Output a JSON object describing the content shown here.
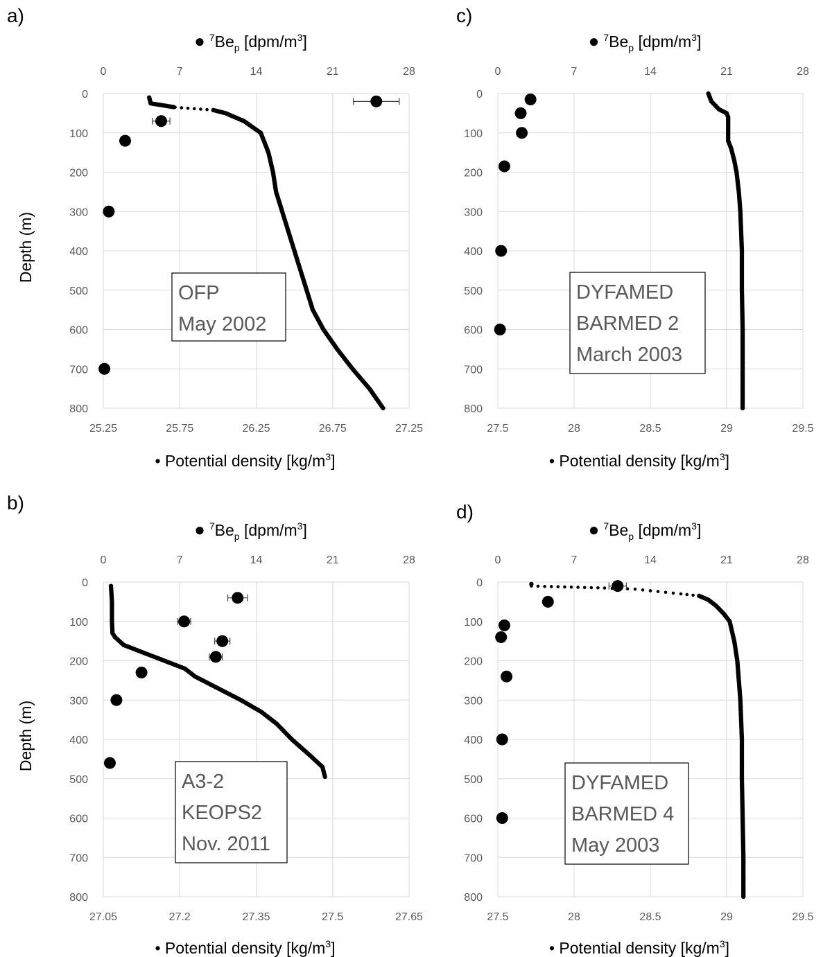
{
  "chart_data": [
    {
      "type": "scatter",
      "panel_label": "a)",
      "top_axis_title": {
        "marker": "●",
        "sup": "7",
        "base": "Be",
        "sub": "p",
        "units": " [dpm/m",
        "units_sup": "3",
        "units_end": "]"
      },
      "bottom_axis_title": {
        "marker": "•",
        "text": " Potential density [kg/m",
        "sup": "3",
        "end": "]"
      },
      "ylabel": "Depth (m)",
      "top_ticks": [
        "0",
        "7",
        "14",
        "21",
        "28"
      ],
      "bottom_ticks": [
        "25.25",
        "25.75",
        "26.25",
        "26.75",
        "27.25"
      ],
      "y_ticks": [
        "0",
        "100",
        "200",
        "300",
        "400",
        "500",
        "600",
        "700",
        "800"
      ],
      "top_range": [
        0,
        28
      ],
      "bottom_range": [
        25.25,
        27.25
      ],
      "y_range": [
        0,
        800
      ],
      "annotation": [
        "OFP",
        "May 2002"
      ],
      "be7_points": [
        {
          "depth": 20,
          "value": 25.0,
          "err": 2.1
        },
        {
          "depth": 70,
          "value": 5.3,
          "err": 0.8
        },
        {
          "depth": 120,
          "value": 2.0
        },
        {
          "depth": 300,
          "value": 0.5
        },
        {
          "depth": 700,
          "value": 0.1
        }
      ],
      "density_profile": [
        [
          10,
          25.55
        ],
        [
          25,
          25.56
        ],
        [
          35,
          25.72
        ],
        [
          42,
          25.97
        ],
        [
          50,
          26.05
        ],
        [
          70,
          26.17
        ],
        [
          100,
          26.28
        ],
        [
          150,
          26.33
        ],
        [
          200,
          26.36
        ],
        [
          250,
          26.38
        ],
        [
          300,
          26.42
        ],
        [
          350,
          26.46
        ],
        [
          400,
          26.5
        ],
        [
          450,
          26.54
        ],
        [
          500,
          26.58
        ],
        [
          550,
          26.62
        ],
        [
          600,
          26.69
        ],
        [
          650,
          26.78
        ],
        [
          700,
          26.88
        ],
        [
          750,
          26.99
        ],
        [
          800,
          27.08
        ]
      ]
    },
    {
      "type": "scatter",
      "panel_label": "b)",
      "top_axis_title": {
        "marker": "●",
        "sup": "7",
        "base": "Be",
        "sub": "p",
        "units": " [dpm/m",
        "units_sup": "3",
        "units_end": "]"
      },
      "bottom_axis_title": {
        "marker": "•",
        "text": " Potential density [kg/m",
        "sup": "3",
        "end": "]"
      },
      "ylabel": "Depth (m)",
      "top_ticks": [
        "0",
        "7",
        "14",
        "21",
        "28"
      ],
      "bottom_ticks": [
        "27.05",
        "27.2",
        "27.35",
        "27.5",
        "27.65"
      ],
      "y_ticks": [
        "0",
        "100",
        "200",
        "300",
        "400",
        "500",
        "600",
        "700",
        "800"
      ],
      "top_range": [
        0,
        28
      ],
      "bottom_range": [
        27.05,
        27.65
      ],
      "y_range": [
        0,
        800
      ],
      "annotation": [
        "A3-2",
        "KEOPS2",
        "Nov. 2011"
      ],
      "be7_points": [
        {
          "depth": 40,
          "value": 12.3,
          "err": 0.9
        },
        {
          "depth": 100,
          "value": 7.4,
          "err": 0.6
        },
        {
          "depth": 150,
          "value": 10.9,
          "err": 0.7
        },
        {
          "depth": 190,
          "value": 10.3,
          "err": 0.6
        },
        {
          "depth": 230,
          "value": 3.5
        },
        {
          "depth": 300,
          "value": 1.2
        },
        {
          "depth": 460,
          "value": 0.6
        }
      ],
      "density_profile": [
        [
          10,
          27.065
        ],
        [
          50,
          27.067
        ],
        [
          100,
          27.067
        ],
        [
          130,
          27.068
        ],
        [
          140,
          27.073
        ],
        [
          160,
          27.09
        ],
        [
          180,
          27.13
        ],
        [
          200,
          27.17
        ],
        [
          220,
          27.21
        ],
        [
          240,
          27.23
        ],
        [
          260,
          27.26
        ],
        [
          280,
          27.29
        ],
        [
          300,
          27.32
        ],
        [
          330,
          27.36
        ],
        [
          360,
          27.39
        ],
        [
          400,
          27.42
        ],
        [
          440,
          27.455
        ],
        [
          470,
          27.48
        ],
        [
          495,
          27.485
        ]
      ]
    },
    {
      "type": "scatter",
      "panel_label": "c)",
      "top_axis_title": {
        "marker": "●",
        "sup": "7",
        "base": "Be",
        "sub": "p",
        "units": " [dpm/m",
        "units_sup": "3",
        "units_end": "]"
      },
      "bottom_axis_title": {
        "marker": "•",
        "text": " Potential density [kg/m",
        "sup": "3",
        "end": "]"
      },
      "ylabel": "",
      "top_ticks": [
        "0",
        "7",
        "14",
        "21",
        "28"
      ],
      "bottom_ticks": [
        "27.5",
        "28",
        "28.5",
        "29",
        "29.5"
      ],
      "y_ticks": [
        "0",
        "100",
        "200",
        "300",
        "400",
        "500",
        "600",
        "700",
        "800"
      ],
      "top_range": [
        0,
        28
      ],
      "bottom_range": [
        27.5,
        29.5
      ],
      "y_range": [
        0,
        800
      ],
      "annotation": [
        "DYFAMED",
        "BARMED 2",
        "March 2003"
      ],
      "be7_points": [
        {
          "depth": 15,
          "value": 3.0
        },
        {
          "depth": 50,
          "value": 2.1
        },
        {
          "depth": 100,
          "value": 2.2
        },
        {
          "depth": 185,
          "value": 0.6
        },
        {
          "depth": 400,
          "value": 0.3
        },
        {
          "depth": 600,
          "value": 0.2
        }
      ],
      "density_profile": [
        [
          0,
          28.88
        ],
        [
          20,
          28.9
        ],
        [
          40,
          28.95
        ],
        [
          50,
          29.0
        ],
        [
          60,
          29.01
        ],
        [
          100,
          29.01
        ],
        [
          120,
          29.01
        ],
        [
          140,
          29.03
        ],
        [
          170,
          29.05
        ],
        [
          200,
          29.065
        ],
        [
          250,
          29.08
        ],
        [
          300,
          29.09
        ],
        [
          400,
          29.1
        ],
        [
          500,
          29.1
        ],
        [
          600,
          29.105
        ],
        [
          700,
          29.105
        ],
        [
          800,
          29.105
        ]
      ]
    },
    {
      "type": "scatter",
      "panel_label": "d)",
      "top_axis_title": {
        "marker": "●",
        "sup": "7",
        "base": "Be",
        "sub": "p",
        "units": " [dpm/m",
        "units_sup": "3",
        "units_end": "]"
      },
      "bottom_axis_title": {
        "marker": "•",
        "text": " Potential density [kg/m",
        "sup": "3",
        "end": "]"
      },
      "ylabel": "Depth (m)",
      "top_ticks": [
        "0",
        "7",
        "14",
        "21",
        "28"
      ],
      "bottom_ticks": [
        "27.5",
        "28",
        "28.5",
        "29",
        "29.5"
      ],
      "y_ticks": [
        "0",
        "100",
        "200",
        "300",
        "400",
        "500",
        "600",
        "700",
        "800"
      ],
      "top_range": [
        0,
        28
      ],
      "bottom_range": [
        27.5,
        29.5
      ],
      "y_range": [
        0,
        800
      ],
      "annotation": [
        "DYFAMED",
        "BARMED 4",
        "May 2003"
      ],
      "be7_points": [
        {
          "depth": 10,
          "value": 11.0,
          "err": 0.8
        },
        {
          "depth": 50,
          "value": 4.6
        },
        {
          "depth": 110,
          "value": 0.6
        },
        {
          "depth": 140,
          "value": 0.3
        },
        {
          "depth": 240,
          "value": 0.8
        },
        {
          "depth": 400,
          "value": 0.4
        },
        {
          "depth": 600,
          "value": 0.4
        }
      ],
      "density_profile": [
        [
          5,
          27.72
        ],
        [
          10,
          27.72
        ],
        [
          15,
          28.2
        ],
        [
          18,
          28.4
        ],
        [
          22,
          28.5
        ],
        [
          26,
          28.6
        ],
        [
          30,
          28.7
        ],
        [
          35,
          28.82
        ],
        [
          45,
          28.88
        ],
        [
          60,
          28.93
        ],
        [
          80,
          28.98
        ],
        [
          100,
          29.02
        ],
        [
          150,
          29.05
        ],
        [
          200,
          29.07
        ],
        [
          300,
          29.09
        ],
        [
          400,
          29.1
        ],
        [
          500,
          29.1
        ],
        [
          600,
          29.105
        ],
        [
          700,
          29.11
        ],
        [
          800,
          29.11
        ]
      ]
    }
  ]
}
